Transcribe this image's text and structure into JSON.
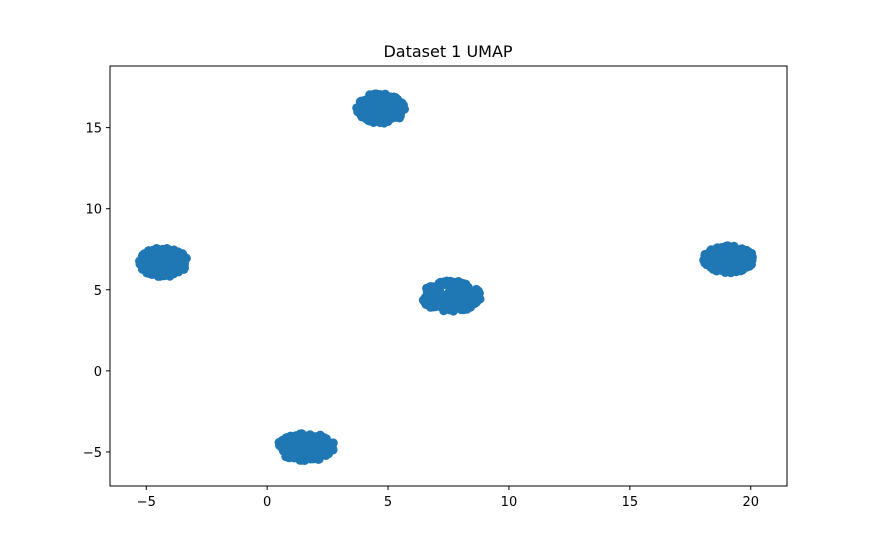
{
  "chart_data": {
    "type": "scatter",
    "title": "Dataset 1 UMAP",
    "xlabel": "",
    "ylabel": "",
    "xlim": [
      -6.5,
      21.5
    ],
    "ylim": [
      -7.1,
      18.8
    ],
    "x_ticks": [
      -5,
      0,
      5,
      10,
      15,
      20
    ],
    "y_ticks": [
      -5,
      0,
      5,
      10,
      15
    ],
    "x_tick_labels": [
      "−5",
      "0",
      "5",
      "10",
      "15",
      "20"
    ],
    "y_tick_labels": [
      "−5",
      "0",
      "5",
      "10",
      "15"
    ],
    "grid": false,
    "legend": "none",
    "marker_color": "#1f77b4",
    "clusters": [
      {
        "center": [
          -4.3,
          6.7
        ],
        "spread": [
          1.0,
          0.9
        ]
      },
      {
        "center": [
          4.7,
          16.2
        ],
        "spread": [
          1.0,
          0.95
        ]
      },
      {
        "center": [
          7.6,
          4.6
        ],
        "spread": [
          1.25,
          0.95
        ]
      },
      {
        "center": [
          1.6,
          -4.7
        ],
        "spread": [
          1.2,
          0.85
        ]
      },
      {
        "center": [
          19.1,
          6.9
        ],
        "spread": [
          1.05,
          0.85
        ]
      }
    ]
  }
}
